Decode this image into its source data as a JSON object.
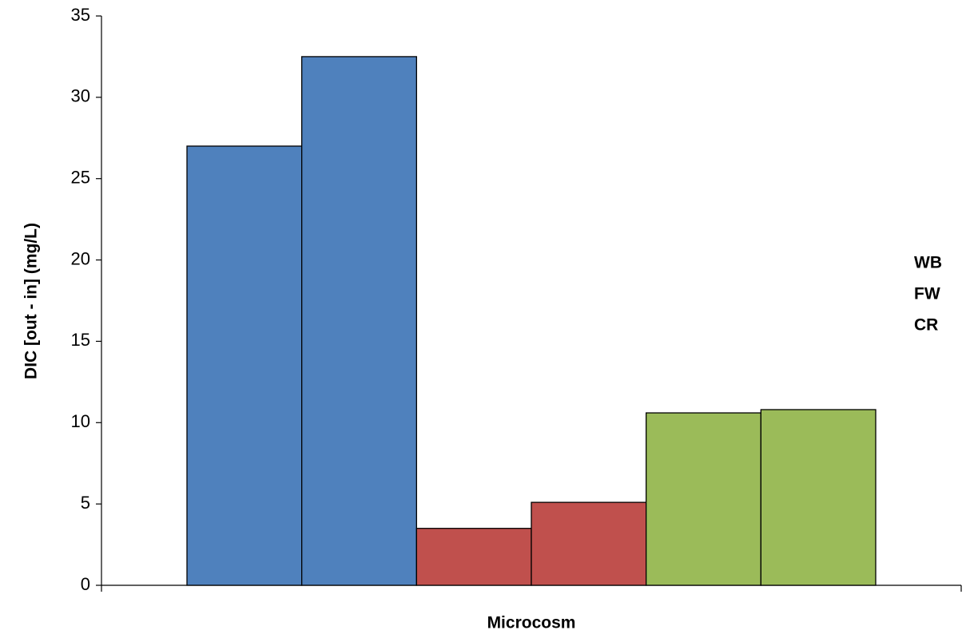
{
  "chart_data": {
    "type": "bar",
    "x_label": "Microcosm",
    "y_label": "DIC [out - in] (mg/L)",
    "categories": [
      null,
      null,
      null,
      null,
      null,
      null
    ],
    "series": [
      {
        "name": "WB",
        "color": "#4f81bd",
        "values": [
          27,
          32.5,
          null,
          null,
          null,
          null
        ]
      },
      {
        "name": "FW",
        "color": "#c0504d",
        "values": [
          null,
          null,
          3.5,
          5.1,
          null,
          null
        ]
      },
      {
        "name": "CR",
        "color": "#9bbb59",
        "values": [
          null,
          null,
          null,
          null,
          10.6,
          10.8
        ]
      }
    ],
    "ylim": [
      0,
      35
    ],
    "yticks": [
      0,
      5,
      10,
      15,
      20,
      25,
      30,
      35
    ],
    "grid": false
  }
}
